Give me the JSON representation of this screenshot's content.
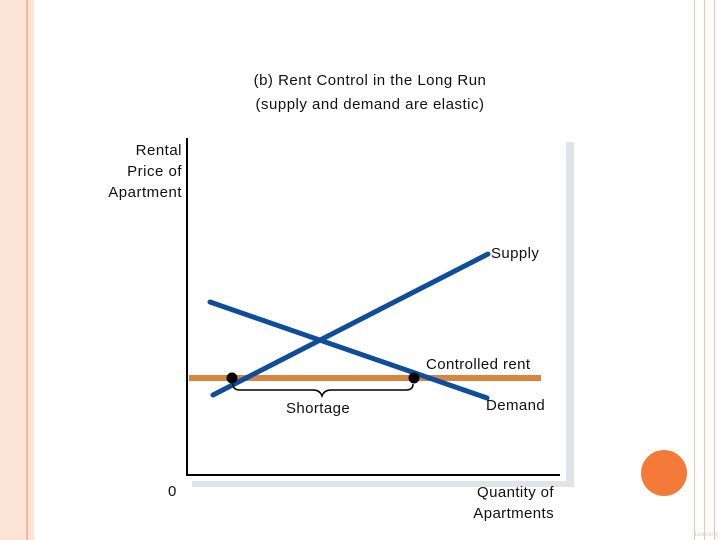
{
  "title": {
    "line1": "(b) Rent Control in the Long Run",
    "line2": "(supply and demand are elastic)"
  },
  "axes": {
    "y_label": [
      "Rental",
      "Price of",
      "Apartment"
    ],
    "x_label": [
      "Quantity of",
      "Apartments"
    ],
    "origin": "0"
  },
  "labels": {
    "supply": "Supply",
    "demand": "Demand",
    "controlled_rent": "Controlled rent",
    "shortage": "Shortage"
  },
  "colors": {
    "curve": "#0d4d9c",
    "controlled_rent": "#d9843f",
    "axis": "#000000",
    "panel_shadow": "#dfe3ea",
    "accent_circle": "#f47a3a",
    "stripe": "#fbe3d6"
  },
  "footer": {
    "corner_text": "Learning"
  }
}
